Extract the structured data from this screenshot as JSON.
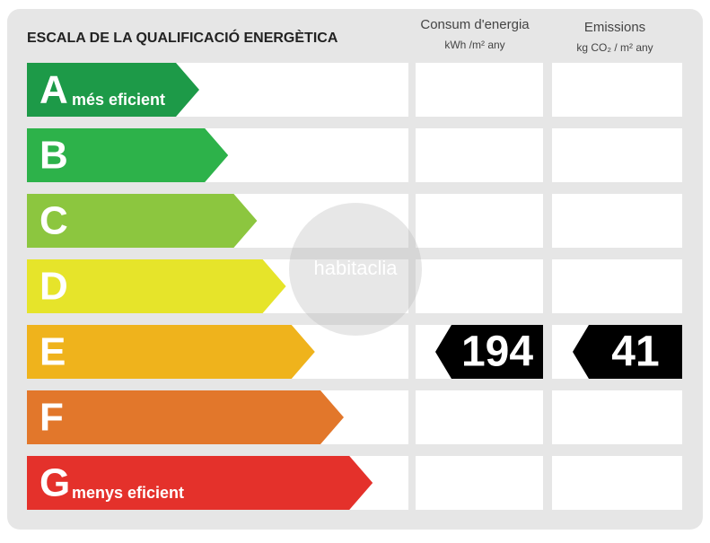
{
  "header": {
    "title": "ESCALA DE LA QUALIFICACIÓ ENERGÈTICA"
  },
  "columns": [
    {
      "title": "Consum d'energia",
      "unit": "kWh /m² any"
    },
    {
      "title": "Emissions",
      "unit": "kg CO₂ / m² any"
    }
  ],
  "rows": [
    {
      "letter": "A",
      "label": "més eficient",
      "color": "#1d9a48"
    },
    {
      "letter": "B",
      "color": "#2db24a"
    },
    {
      "letter": "C",
      "color": "#8cc63f"
    },
    {
      "letter": "D",
      "color": "#e6e42a"
    },
    {
      "letter": "E",
      "color": "#efb31c",
      "values": [
        "194",
        "41"
      ]
    },
    {
      "letter": "F",
      "color": "#e2772b"
    },
    {
      "letter": "G",
      "label": "menys eficient",
      "color": "#e4312b"
    }
  ],
  "watermark": "habitaclia"
}
